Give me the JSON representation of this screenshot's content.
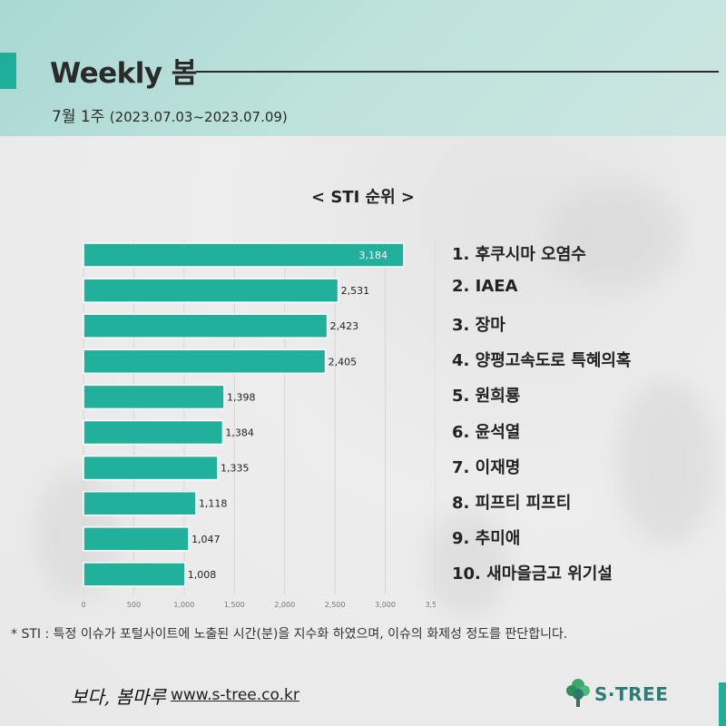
{
  "header": {
    "title": "Weekly 봄",
    "subtitle_week": "7월 1주",
    "subtitle_range": "(2023.07.03~2023.07.09)"
  },
  "chart_data": {
    "type": "bar",
    "orientation": "horizontal",
    "title": "< STI 순위 >",
    "categories": [
      "후쿠시마 오염수",
      "IAEA",
      "장마",
      "양평고속도로 특혜의혹",
      "원희룡",
      "윤석열",
      "이재명",
      "피프티 피프티",
      "추미애",
      "새마을금고 위기설"
    ],
    "values": [
      3184,
      2531,
      2423,
      2405,
      1398,
      1384,
      1335,
      1118,
      1047,
      1008
    ],
    "value_labels": [
      "3,184",
      "2,531",
      "2,423",
      "2,405",
      "1,398",
      "1,384",
      "1,335",
      "1,118",
      "1,047",
      "1,008"
    ],
    "xlim": [
      0,
      3500
    ],
    "xticks": [
      "0",
      "500",
      "1,000",
      "1,500",
      "2,000",
      "2,500",
      "3,000",
      "3,500"
    ],
    "grid": true,
    "bar_color": "#20b09c"
  },
  "ranking": [
    "1. 후쿠시마 오염수",
    "2. IAEA",
    "3. 장마",
    "4. 양평고속도로 특혜의혹",
    "5. 원희룡",
    "6. 윤석열",
    "7. 이재명",
    "8. 피프티 피프티",
    "9. 추미애",
    "10. 새마을금고 위기설"
  ],
  "footnote": "* STI : 특정 이슈가 포털사이트에 노출된 시간(분)을 지수화 하였으며, 이슈의 화제성 정도를 판단합니다.",
  "footer": {
    "brand_script": "보다, 봄마루",
    "url": "www.s-tree.co.kr",
    "logo_text": "S·TREE",
    "logo_icon": "tree-icon"
  }
}
